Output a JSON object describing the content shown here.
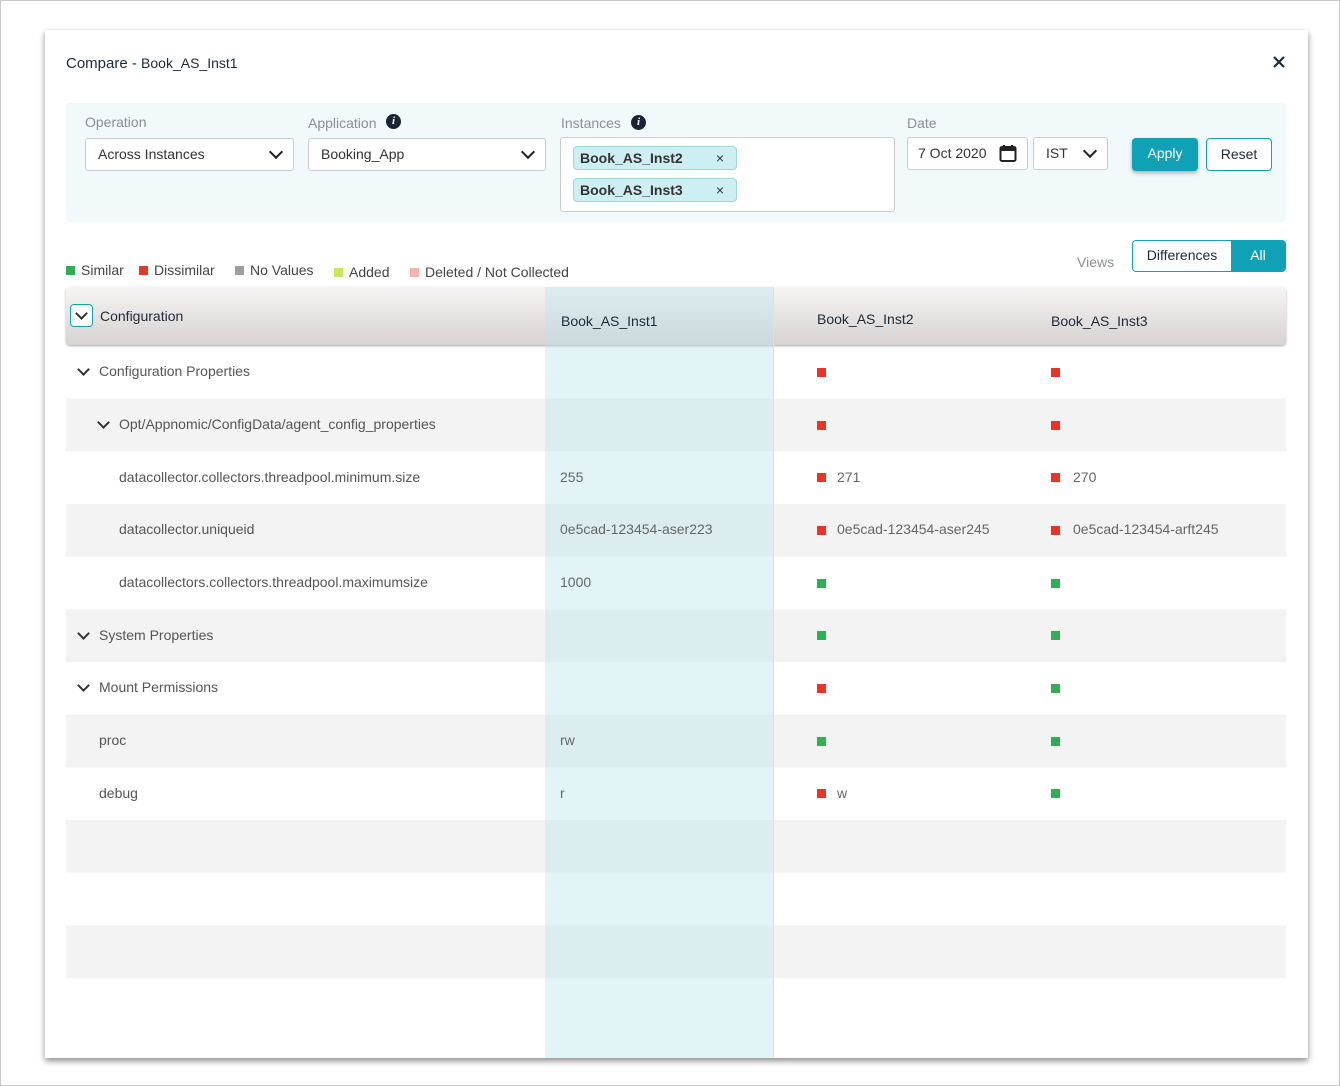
{
  "header": {
    "title": "Compare -",
    "subject": "Book_AS_Inst1"
  },
  "filters": {
    "operation": {
      "label": "Operation",
      "value": "Across Instances"
    },
    "application": {
      "label": "Application",
      "value": "Booking_App"
    },
    "instances": {
      "label": "Instances",
      "chips": [
        "Book_AS_Inst2",
        "Book_AS_Inst3"
      ]
    },
    "date": {
      "label": "Date",
      "value": "7 Oct 2020",
      "timezone": "IST"
    },
    "buttons": [
      "Apply",
      "Reset"
    ]
  },
  "legend": [
    {
      "label": "Similar",
      "color": "#2eaf54"
    },
    {
      "label": "Dissimilar",
      "color": "#ee3224"
    },
    {
      "label": "No Values",
      "color": "#9e9e9e"
    },
    {
      "label": "Added",
      "color": "#c8e65a"
    },
    {
      "label": "Deleted / Not Collected",
      "color": "#f4b4a8"
    }
  ],
  "views": {
    "label": "Views",
    "options": [
      "Differences",
      "All"
    ],
    "selected": 1
  },
  "table": {
    "group": "Configuration",
    "columns": [
      "Book_AS_Inst1",
      "Book_AS_Inst2",
      "Book_AS_Inst3"
    ],
    "rows": [
      {
        "label": "Configuration Properties",
        "cells": [
          null,
          {
            "status": 1
          },
          {
            "status": 1
          }
        ],
        "children": [
          {
            "label": "Opt/Appnomic/ConfigData/agent_config_properties",
            "cells": [
              null,
              {
                "status": 1
              },
              {
                "status": 1
              }
            ],
            "children": [
              {
                "label": "datacollector.collectors.threadpool.minimum.size",
                "cells": [
                  {
                    "value": 255
                  },
                  {
                    "status": 1,
                    "value": 271
                  },
                  {
                    "status": 1,
                    "value": 270
                  }
                ]
              },
              {
                "label": "datacollector.uniqueid",
                "cells": [
                  {
                    "value": "0e5cad-123454-aser223"
                  },
                  {
                    "status": 1,
                    "value": "0e5cad-123454-aser245"
                  },
                  {
                    "status": 1,
                    "value": "0e5cad-123454-arft245"
                  }
                ]
              },
              {
                "label": "datacollectors.collectors.threadpool.maximumsize",
                "cells": [
                  {
                    "value": 1000
                  },
                  {
                    "status": 0
                  },
                  {
                    "status": 0
                  }
                ]
              }
            ]
          }
        ]
      },
      {
        "label": "System Properties",
        "cells": [
          null,
          {
            "status": 0
          },
          {
            "status": 0
          }
        ],
        "children": []
      },
      {
        "label": "Mount Permissions",
        "cells": [
          null,
          {
            "status": 1
          },
          {
            "status": 0
          }
        ],
        "children": [
          {
            "label": "proc",
            "cells": [
              {
                "value": "rw"
              },
              {
                "status": 0
              },
              {
                "status": 0
              }
            ]
          },
          {
            "label": "debug",
            "cells": [
              {
                "value": "r"
              },
              {
                "status": 1,
                "value": "w"
              },
              {
                "status": 0
              }
            ]
          }
        ]
      }
    ]
  }
}
